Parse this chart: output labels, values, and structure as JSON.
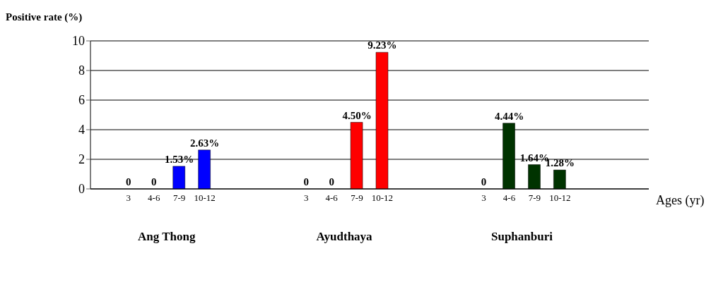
{
  "chart_data": {
    "type": "bar",
    "ylabel": "Positive rate (%)",
    "xlabel": "Ages (yr)",
    "categories": [
      null,
      "3",
      "4-6",
      "7-9",
      "10-12",
      null,
      null,
      null,
      "3",
      "4-6",
      "7-9",
      "10-12",
      null,
      null,
      null,
      "3",
      "4-6",
      "7-9",
      "10-12",
      null,
      null,
      null
    ],
    "values": [
      null,
      0,
      0,
      1.53,
      2.63,
      null,
      null,
      null,
      0,
      0,
      4.5,
      9.23,
      null,
      null,
      null,
      0,
      4.44,
      1.64,
      1.28,
      null,
      null,
      null
    ],
    "colors": [
      null,
      "#0000ff",
      "#0000ff",
      "#0000ff",
      "#0000ff",
      null,
      null,
      null,
      "#ff0000",
      "#ff0000",
      "#ff0000",
      "#ff0000",
      null,
      null,
      null,
      "#003300",
      "#003300",
      "#003300",
      "#003300",
      null,
      null,
      null
    ],
    "value_labels": [
      null,
      "0",
      "0",
      "1.53%",
      "2.63%",
      null,
      null,
      null,
      "0",
      "0",
      "4.50%",
      "9.23%",
      null,
      null,
      null,
      "0",
      "4.44%",
      "1.64%",
      "1.28%",
      null,
      null,
      null
    ],
    "annotations": [
      "Ang Thong",
      "Ayudthaya",
      "Suphanburi"
    ],
    "ylim": [
      0,
      10
    ],
    "yticks": [
      0,
      2,
      4,
      6,
      8,
      10
    ],
    "grid": "y"
  }
}
